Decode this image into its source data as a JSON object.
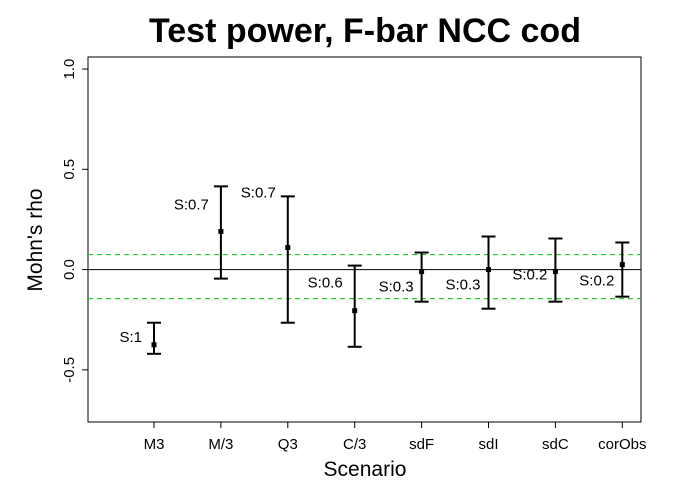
{
  "chart_data": {
    "type": "errorbar",
    "title": "Test power, F-bar NCC cod",
    "xlabel": "Scenario",
    "ylabel": "Mohn's rho",
    "ylim": [
      -0.76,
      1.06
    ],
    "yticks": [
      "-0.5",
      "0.0",
      "0.5",
      "1.0"
    ],
    "ytick_values": [
      -0.5,
      0.0,
      0.5,
      1.0
    ],
    "grid": false,
    "legend": "none",
    "reference_lines": [
      {
        "value": 0.0,
        "style": "solid",
        "color": "#000000"
      },
      {
        "value": 0.075,
        "style": "dashed",
        "color": "#22cc22"
      },
      {
        "value": -0.145,
        "style": "dashed",
        "color": "#22cc22"
      }
    ],
    "categories": [
      "M3",
      "M/3",
      "Q3",
      "C/3",
      "sdF",
      "sdI",
      "sdC",
      "corObs"
    ],
    "points": [
      {
        "scenario": "M3",
        "y": -0.375,
        "lower": -0.42,
        "upper": -0.265,
        "label": "S:1"
      },
      {
        "scenario": "M/3",
        "y": 0.19,
        "lower": -0.045,
        "upper": 0.415,
        "label": "S:0.7"
      },
      {
        "scenario": "Q3",
        "y": 0.11,
        "lower": -0.265,
        "upper": 0.365,
        "label": "S:0.7"
      },
      {
        "scenario": "C/3",
        "y": -0.205,
        "lower": -0.385,
        "upper": 0.02,
        "label": "S:0.6"
      },
      {
        "scenario": "sdF",
        "y": -0.01,
        "lower": -0.16,
        "upper": 0.085,
        "label": "S:0.3"
      },
      {
        "scenario": "sdI",
        "y": 0.0,
        "lower": -0.195,
        "upper": 0.165,
        "label": "S:0.3"
      },
      {
        "scenario": "sdC",
        "y": -0.01,
        "lower": -0.16,
        "upper": 0.155,
        "label": "S:0.2"
      },
      {
        "scenario": "corObs",
        "y": 0.025,
        "lower": -0.135,
        "upper": 0.135,
        "label": "S:0.2"
      }
    ],
    "colors": {
      "marks": "#000000",
      "reference": "#22cc22"
    }
  }
}
